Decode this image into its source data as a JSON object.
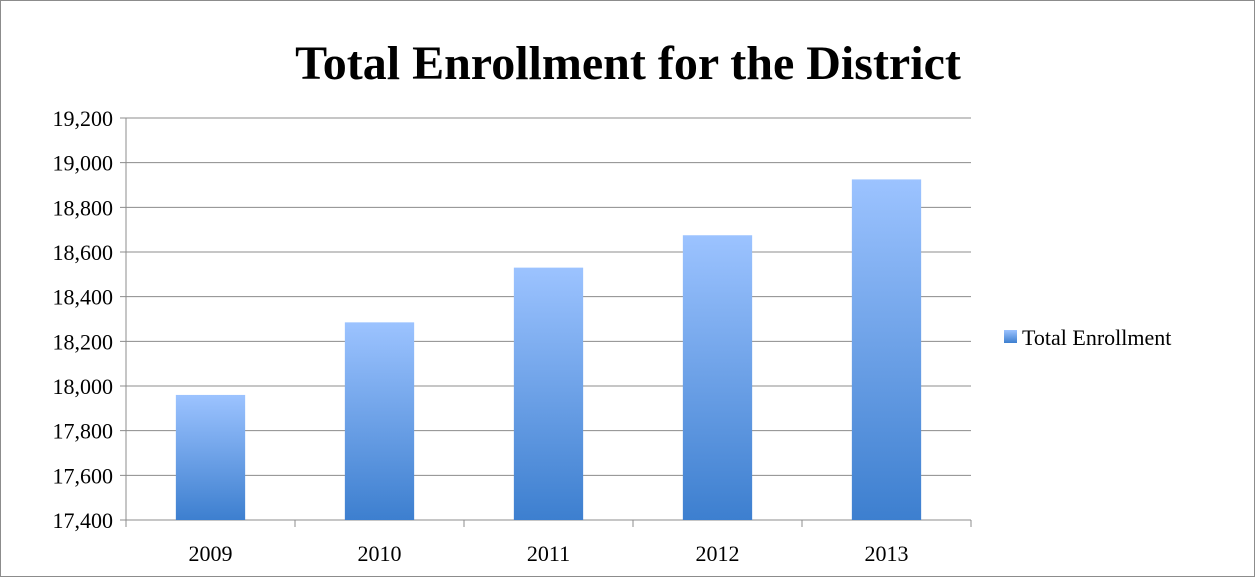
{
  "chart_data": {
    "type": "bar",
    "title": "Total Enrollment for the District",
    "xlabel": "",
    "ylabel": "",
    "categories": [
      "2009",
      "2010",
      "2011",
      "2012",
      "2013"
    ],
    "series": [
      {
        "name": "Total Enrollment",
        "values": [
          17960,
          18285,
          18530,
          18675,
          18925
        ]
      }
    ],
    "ylim": [
      17400,
      19200
    ],
    "yticks": [
      17400,
      17600,
      17800,
      18000,
      18200,
      18400,
      18600,
      18800,
      19000,
      19200
    ],
    "ytick_labels": [
      "17,400",
      "17,600",
      "17,800",
      "18,000",
      "18,200",
      "18,400",
      "18,600",
      "18,800",
      "19,000",
      "19,200"
    ],
    "grid": true,
    "legend_position": "right",
    "colors": {
      "bar_top": "#9cc3ff",
      "bar_bottom": "#3d7fcf",
      "gridline": "#8c8c8c",
      "axis": "#8c8c8c",
      "frame": "#8c8c8c"
    }
  }
}
